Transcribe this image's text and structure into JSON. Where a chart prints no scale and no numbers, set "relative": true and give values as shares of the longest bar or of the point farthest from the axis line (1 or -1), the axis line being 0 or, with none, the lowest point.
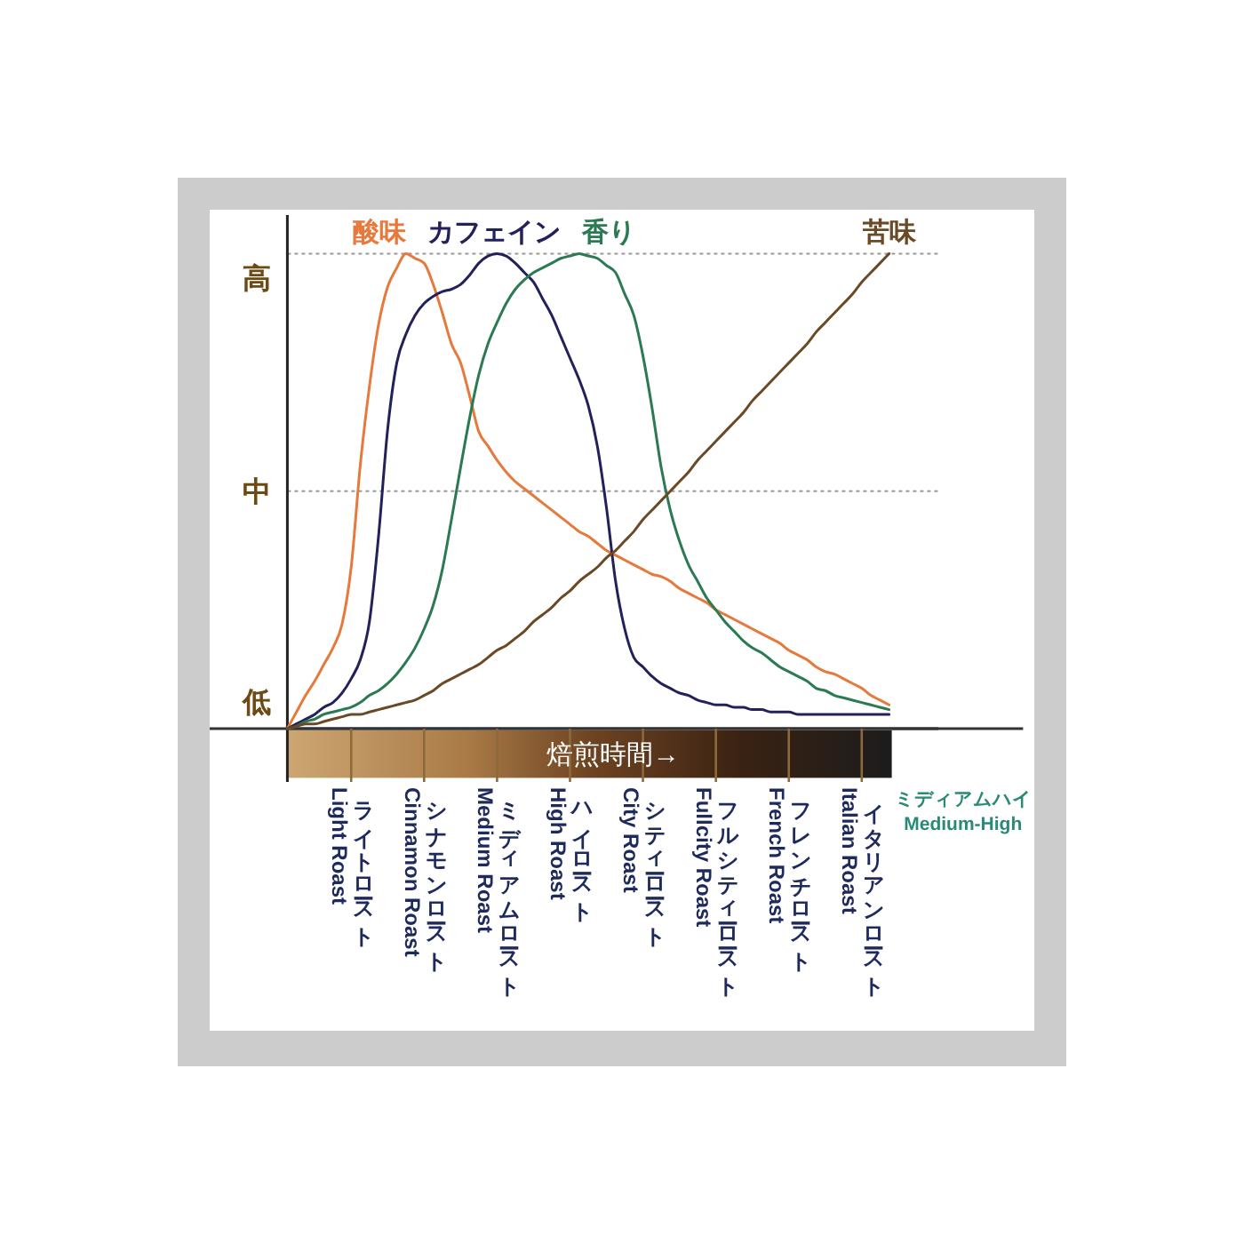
{
  "chart_data": {
    "type": "line",
    "relative": true,
    "xlabel": "焙煎時間→",
    "categories": [
      null,
      null,
      null,
      null,
      null,
      null,
      null,
      "ライトロースト\nLight Roast",
      null,
      null,
      null,
      null,
      null,
      null,
      null,
      "シナモンロースト\nCinnamon Roast",
      null,
      null,
      null,
      null,
      null,
      null,
      null,
      "ミディアムロースト\nMedium Roast",
      null,
      null,
      null,
      null,
      null,
      null,
      null,
      "ハイロースト\nHigh Roast",
      null,
      null,
      null,
      null,
      null,
      null,
      null,
      "シティーロースト\nCity Roast",
      null,
      null,
      null,
      null,
      null,
      null,
      null,
      "フルシティーロースト\nFullcity Roast",
      null,
      null,
      null,
      null,
      null,
      null,
      null,
      "フレンチロースト\nFrench Roast",
      null,
      null,
      null,
      null,
      null,
      null,
      null,
      "イタリアンロースト\nItalian Roast",
      null,
      null,
      null
    ],
    "series": [
      {
        "name": "酸味",
        "color": "#e57a3c",
        "values": [
          0,
          0.035,
          0.07,
          0.1,
          0.135,
          0.17,
          0.22,
          0.34,
          0.555,
          0.72,
          0.85,
          0.93,
          0.97,
          1,
          0.99,
          0.98,
          0.935,
          0.875,
          0.81,
          0.77,
          0.7,
          0.625,
          0.595,
          0.565,
          0.54,
          0.52,
          0.505,
          0.49,
          0.475,
          0.46,
          0.445,
          0.43,
          0.415,
          0.405,
          0.39,
          0.375,
          0.365,
          0.355,
          0.345,
          0.335,
          0.325,
          0.32,
          0.31,
          0.295,
          0.285,
          0.275,
          0.265,
          0.25,
          0.24,
          0.23,
          0.22,
          0.21,
          0.2,
          0.19,
          0.18,
          0.165,
          0.155,
          0.145,
          0.13,
          0.12,
          0.115,
          0.105,
          0.095,
          0.085,
          0.07,
          0.06,
          0.05
        ]
      },
      {
        "name": "カフェイン",
        "color": "#23215c",
        "values": [
          0,
          0.01,
          0.02,
          0.03,
          0.045,
          0.055,
          0.075,
          0.105,
          0.145,
          0.225,
          0.405,
          0.63,
          0.77,
          0.83,
          0.87,
          0.895,
          0.91,
          0.92,
          0.925,
          0.935,
          0.955,
          0.98,
          0.995,
          1,
          0.995,
          0.98,
          0.96,
          0.94,
          0.905,
          0.87,
          0.825,
          0.78,
          0.735,
          0.68,
          0.595,
          0.465,
          0.31,
          0.21,
          0.15,
          0.13,
          0.11,
          0.095,
          0.085,
          0.075,
          0.07,
          0.06,
          0.055,
          0.05,
          0.05,
          0.045,
          0.045,
          0.04,
          0.04,
          0.035,
          0.035,
          0.035,
          0.03,
          0.03,
          0.03,
          0.03,
          0.03,
          0.03,
          0.03,
          0.03,
          0.03,
          0.03,
          0.03
        ]
      },
      {
        "name": "香り",
        "color": "#2b7a52",
        "values": [
          0,
          0.005,
          0.015,
          0.02,
          0.03,
          0.035,
          0.04,
          0.045,
          0.055,
          0.07,
          0.08,
          0.095,
          0.115,
          0.14,
          0.17,
          0.21,
          0.26,
          0.335,
          0.44,
          0.55,
          0.655,
          0.745,
          0.81,
          0.855,
          0.895,
          0.925,
          0.945,
          0.96,
          0.97,
          0.98,
          0.99,
          0.995,
          1,
          0.995,
          0.99,
          0.975,
          0.96,
          0.915,
          0.87,
          0.785,
          0.675,
          0.55,
          0.46,
          0.395,
          0.345,
          0.31,
          0.275,
          0.25,
          0.225,
          0.205,
          0.185,
          0.17,
          0.16,
          0.145,
          0.13,
          0.12,
          0.11,
          0.1,
          0.085,
          0.08,
          0.07,
          0.065,
          0.06,
          0.055,
          0.05,
          0.045,
          0.04
        ]
      },
      {
        "name": "苦味",
        "color": "#6a4a26",
        "values": [
          0,
          0.005,
          0.01,
          0.01,
          0.015,
          0.02,
          0.025,
          0.03,
          0.03,
          0.035,
          0.04,
          0.045,
          0.05,
          0.055,
          0.06,
          0.07,
          0.08,
          0.095,
          0.105,
          0.115,
          0.125,
          0.135,
          0.15,
          0.165,
          0.175,
          0.19,
          0.205,
          0.225,
          0.24,
          0.255,
          0.275,
          0.29,
          0.31,
          0.325,
          0.34,
          0.36,
          0.375,
          0.395,
          0.415,
          0.44,
          0.46,
          0.48,
          0.5,
          0.52,
          0.54,
          0.565,
          0.585,
          0.605,
          0.625,
          0.645,
          0.665,
          0.69,
          0.71,
          0.73,
          0.75,
          0.77,
          0.79,
          0.81,
          0.835,
          0.855,
          0.875,
          0.895,
          0.915,
          0.94,
          0.96,
          0.98,
          1
        ]
      }
    ],
    "ref_lines": [
      {
        "axis": "y",
        "value": 1,
        "label": "高",
        "line_style": "dotted",
        "color": "#999999"
      },
      {
        "axis": "y",
        "value": 0.5,
        "label": "中",
        "line_style": "dotted",
        "color": "#999999"
      },
      {
        "axis": "y",
        "value": 0,
        "label": "低",
        "line_style": "solid",
        "color": "#222222"
      }
    ],
    "annotations": [
      "ミディアムハイ\nMedium-High"
    ]
  }
}
